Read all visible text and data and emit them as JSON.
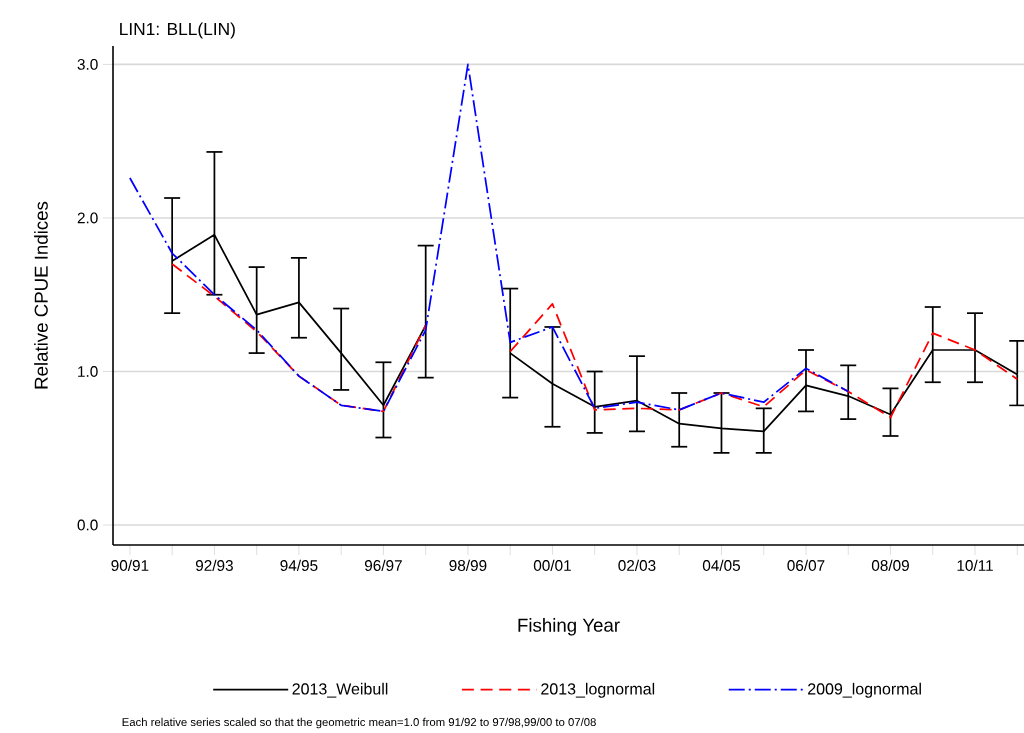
{
  "chart_data": {
    "type": "line",
    "title": "LIN1: BLL(LIN)",
    "xlabel": "Fishing Year",
    "ylabel": "Relative CPUE Indices",
    "categories": [
      "90/91",
      null,
      "92/93",
      null,
      "94/95",
      null,
      "96/97",
      null,
      "98/99",
      null,
      "00/01",
      null,
      "02/03",
      null,
      "04/05",
      null,
      "06/07",
      null,
      "08/09",
      null,
      "10/11",
      null
    ],
    "series": [
      {
        "name": "2013_Weibull",
        "color": "#000000",
        "line_style": "solid",
        "values": [
          null,
          1.72,
          1.89,
          1.37,
          1.45,
          1.12,
          0.78,
          1.3,
          null,
          1.12,
          0.92,
          0.77,
          0.81,
          0.66,
          0.63,
          0.61,
          0.91,
          0.84,
          0.72,
          1.14,
          1.14,
          0.98
        ],
        "errors": [
          null,
          [
            1.38,
            2.13
          ],
          [
            1.5,
            2.43
          ],
          [
            1.12,
            1.68
          ],
          [
            1.22,
            1.74
          ],
          [
            0.88,
            1.41
          ],
          [
            0.57,
            1.06
          ],
          [
            0.96,
            1.82
          ],
          null,
          [
            0.83,
            1.54
          ],
          [
            0.64,
            1.29
          ],
          [
            0.6,
            1.0
          ],
          [
            0.61,
            1.1
          ],
          [
            0.51,
            0.86
          ],
          [
            0.47,
            0.86
          ],
          [
            0.47,
            0.76
          ],
          [
            0.74,
            1.14
          ],
          [
            0.69,
            1.04
          ],
          [
            0.58,
            0.89
          ],
          [
            0.93,
            1.42
          ],
          [
            0.93,
            1.38
          ],
          [
            0.78,
            1.2
          ]
        ]
      },
      {
        "name": "2013_lognormal",
        "color": "#ff0000",
        "line_style": "dashed",
        "values": [
          null,
          1.7,
          1.49,
          1.26,
          0.97,
          0.78,
          0.74,
          1.3,
          null,
          1.13,
          1.44,
          0.75,
          0.76,
          0.75,
          0.86,
          0.77,
          1.01,
          0.87,
          0.7,
          1.25,
          1.14,
          0.95
        ]
      },
      {
        "name": "2009_lognormal",
        "color": "#0000ff",
        "line_style": "dashdot",
        "values": [
          2.26,
          1.77,
          1.5,
          1.27,
          0.97,
          0.78,
          0.74,
          1.27,
          3.0,
          1.19,
          1.29,
          0.76,
          0.8,
          0.75,
          0.86,
          0.8,
          1.02,
          0.87,
          null,
          null,
          null,
          null
        ]
      }
    ],
    "ylim": [
      -0.13,
      3.12
    ],
    "yticks": [
      {
        "value": 0,
        "label": "0.0"
      },
      {
        "value": 1,
        "label": "1.0"
      },
      {
        "value": 2,
        "label": "2.0"
      },
      {
        "value": 3,
        "label": "3.0"
      }
    ],
    "grid": "y",
    "legend": "bottom",
    "marker": "none",
    "annotations": [
      "Each relative series scaled so that the geometric mean=1.0 from 91/92 to 97/98,99/00 to 07/08"
    ]
  }
}
